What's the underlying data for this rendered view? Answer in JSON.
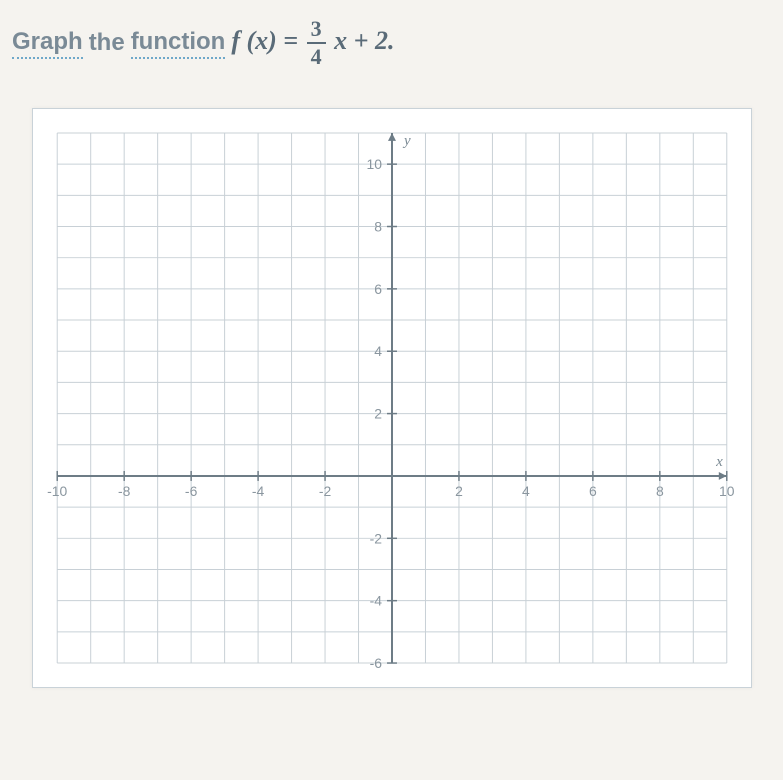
{
  "prompt": {
    "word1": "Graph",
    "word2": "the",
    "word3": "function",
    "func_lhs": "f (x) =",
    "frac_num": "3",
    "frac_den": "4",
    "func_rhs": "x + 2."
  },
  "chart": {
    "type": "cartesian-grid",
    "xlim": [
      -10,
      10
    ],
    "ylim": [
      -6,
      11
    ],
    "xtick_step": 1,
    "ytick_step": 1,
    "x_label_major": [
      -10,
      -8,
      -6,
      -4,
      -2,
      2,
      4,
      6,
      8,
      10
    ],
    "y_label_major": [
      10,
      8,
      6,
      4,
      2,
      -2,
      -4,
      -6
    ],
    "y_axis_label": "y",
    "x_axis_label": "x",
    "grid_color": "#c8d0d6",
    "grid_major_color": "#b5c0c8",
    "axis_color": "#6d7c86",
    "background_color": "#ffffff",
    "tick_fontsize": 14,
    "axis_fontsize": 15,
    "arrow_size": 8
  }
}
